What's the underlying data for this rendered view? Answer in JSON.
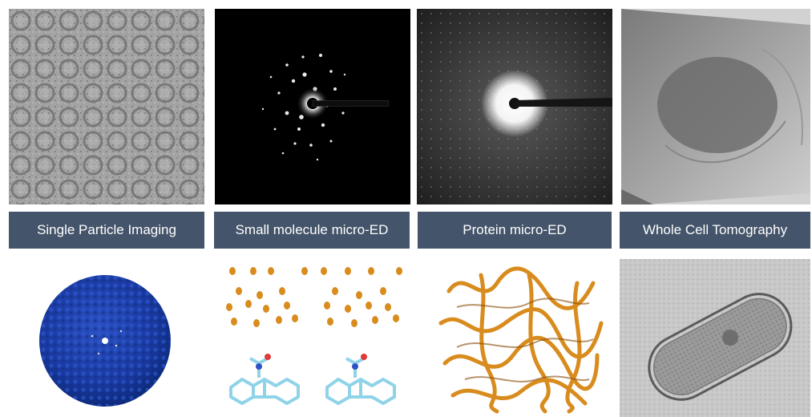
{
  "labels": {
    "single_particle": "Single Particle Imaging",
    "small_molecule": "Small molecule micro-ED",
    "protein": "Protein micro-ED",
    "whole_cell": "Whole Cell Tomography"
  },
  "colors": {
    "label_bg": "#44546a",
    "label_text": "#ffffff",
    "micrograph_gray": "#9c9c9c",
    "density_blue": "#1a3aa0",
    "atom_orange": "#d98c1e",
    "molecule_bond": "#8fd3e8"
  }
}
